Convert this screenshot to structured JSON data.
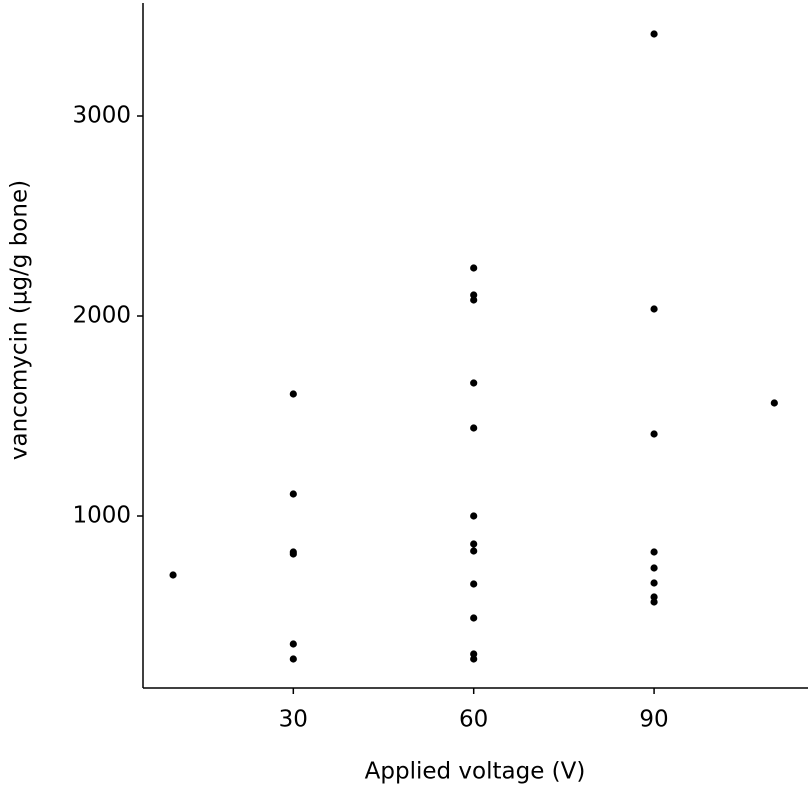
{
  "chart_data": {
    "type": "scatter",
    "x_label": "Applied voltage (V)",
    "y_label": "vancomycin (µg/g bone)",
    "x": [
      10,
      30,
      30,
      30,
      30,
      30,
      30,
      60,
      60,
      60,
      60,
      60,
      60,
      60,
      60,
      60,
      60,
      60,
      60,
      90,
      90,
      90,
      90,
      90,
      90,
      90,
      90,
      110
    ],
    "values": [
      705,
      1610,
      1110,
      820,
      810,
      360,
      285,
      2240,
      2105,
      2080,
      1665,
      1440,
      1000,
      860,
      825,
      660,
      490,
      310,
      285,
      3410,
      2035,
      1410,
      820,
      740,
      665,
      595,
      570,
      1565
    ],
    "color": "#000000",
    "xlim": [
      5,
      115.6
    ],
    "ylim": [
      140,
      3565
    ],
    "xticks": [
      30,
      60,
      90
    ],
    "yticks": [
      1000,
      2000,
      3000
    ],
    "grid": false
  }
}
